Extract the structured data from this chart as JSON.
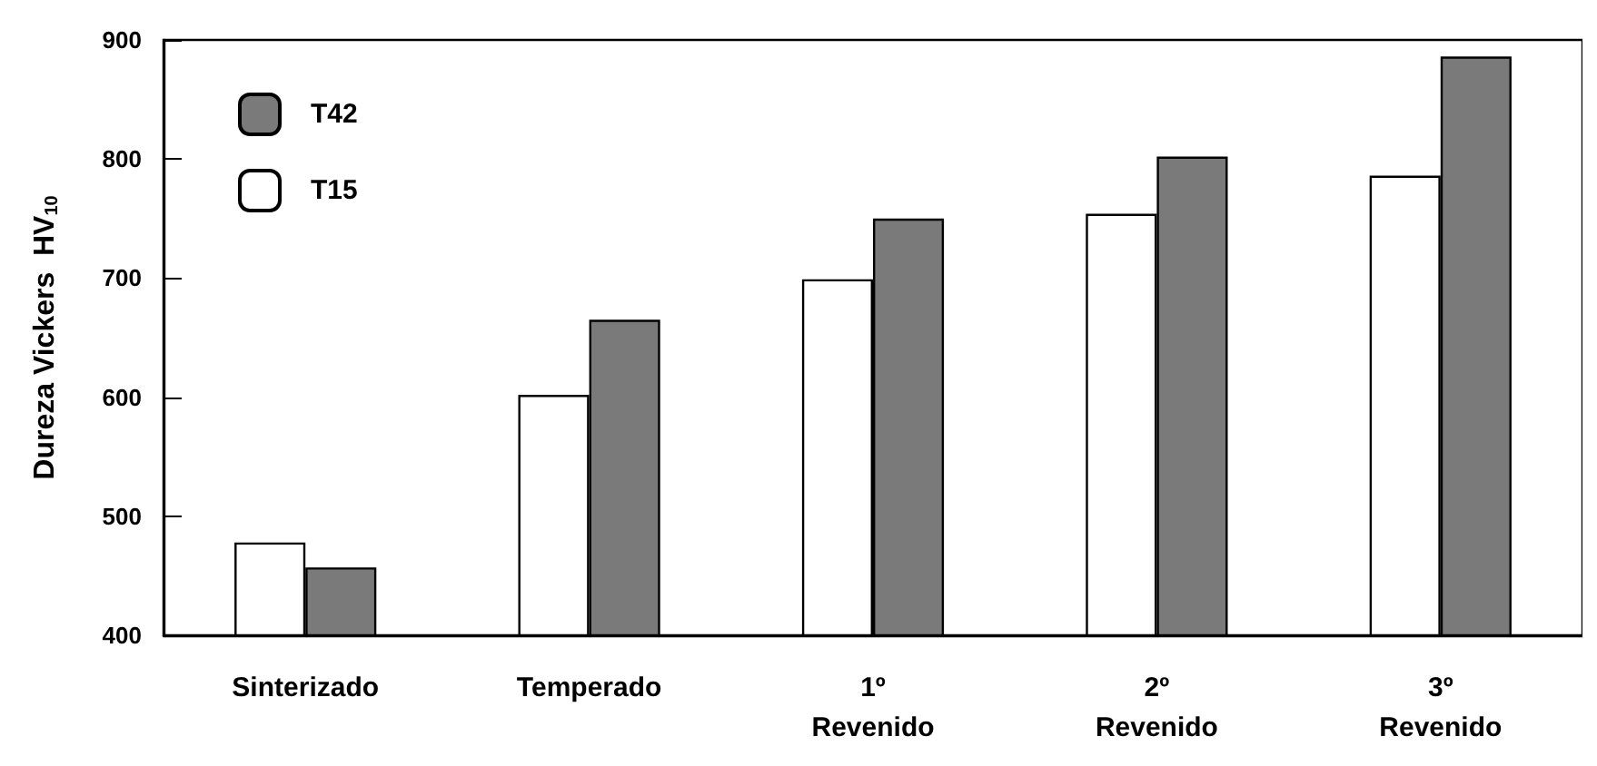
{
  "chart_data": {
    "type": "bar",
    "ylabel": "Dureza Vickers  HV$_{10}$",
    "categories": [
      "Sinterizado",
      "Temperado",
      "1º\nRevenido",
      "2º\nRevenido",
      "3º\nRevenido"
    ],
    "series": [
      {
        "name": "T15",
        "color": "#ffffff",
        "values": [
          478,
          602,
          699,
          754,
          786
        ]
      },
      {
        "name": "T42",
        "color": "#7a7a7a",
        "values": [
          457,
          665,
          750,
          802,
          886
        ]
      }
    ],
    "ylim": [
      400,
      900
    ],
    "yticks": [
      400,
      500,
      600,
      700,
      800,
      900
    ],
    "grid": false,
    "legend": "top left"
  }
}
